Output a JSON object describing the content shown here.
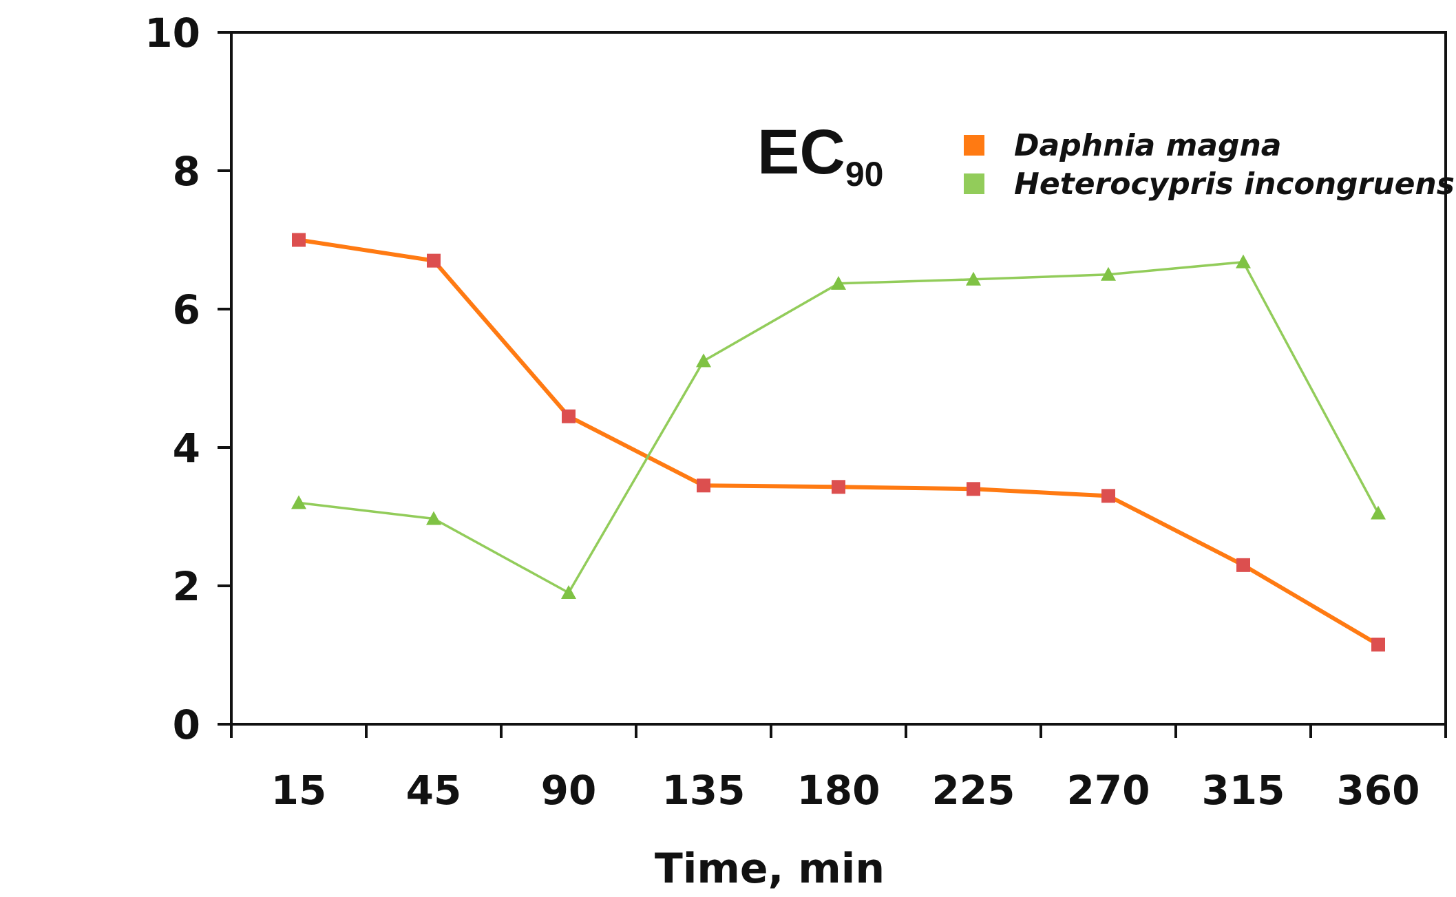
{
  "chart_data": {
    "type": "line",
    "title": "",
    "annotation": {
      "main": "EC",
      "sub": "90"
    },
    "xlabel": "Time, min",
    "ylabel": "",
    "categories": [
      "15",
      "45",
      "90",
      "135",
      "180",
      "225",
      "270",
      "315",
      "360"
    ],
    "ylim": [
      0,
      10
    ],
    "yticks": [
      "0",
      "2",
      "4",
      "6",
      "8",
      "10"
    ],
    "legend_position": "top-right",
    "series": [
      {
        "name": "Daphnia magna",
        "line_color": "#ff7a12",
        "marker_color": "#dc4f4f",
        "legend_color": "#ff7a12",
        "marker": "square",
        "values": [
          7.0,
          6.7,
          4.45,
          3.45,
          3.43,
          3.4,
          3.3,
          2.3,
          1.15
        ]
      },
      {
        "name": "Heterocypris incongruens",
        "line_color": "#92cc5a",
        "marker_color": "#7fc244",
        "legend_color": "#92cc5a",
        "marker": "triangle",
        "values": [
          3.2,
          2.97,
          1.9,
          5.25,
          6.37,
          6.43,
          6.5,
          6.68,
          3.05
        ]
      }
    ]
  }
}
